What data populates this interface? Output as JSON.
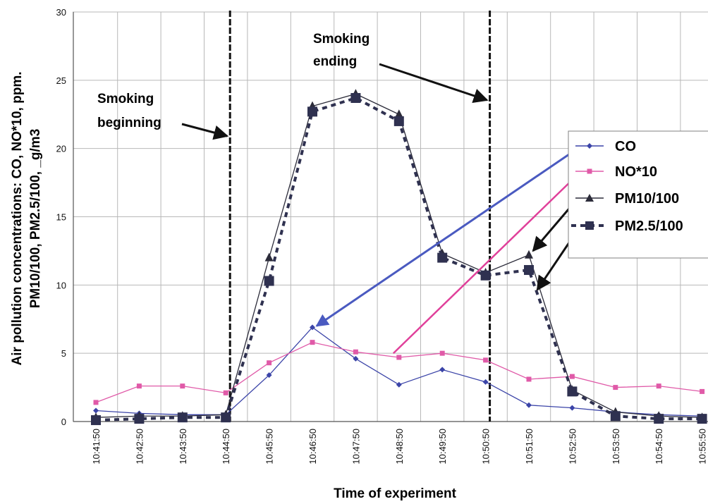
{
  "chart_data": {
    "type": "line",
    "xlabel": "Time of experiment",
    "ylabel": "Air pollution concentrations: CO, NO*10, ppm. PM10/100, PM2.5/100, _g/m3",
    "ylabel_lines": [
      "Air pollution concentrations: CO, NO*10, ppm.",
      "PM10/100, PM2.5/100, _g/m3"
    ],
    "ylim": [
      0,
      30
    ],
    "yticks": [
      0,
      5,
      10,
      15,
      20,
      25,
      30
    ],
    "grid": true,
    "legend_position": "right",
    "categories": [
      "10:41:50",
      "10:42:50",
      "10:43:50",
      "10:44:50",
      "10:45:50",
      "10:46:50",
      "10:47:50",
      "10:48:50",
      "10:49:50",
      "10:50:50",
      "10:51:50",
      "10:52:50",
      "10:53:50",
      "10:54:50",
      "10:55:50"
    ],
    "series": [
      {
        "name": "CO",
        "color": "#3b44a8",
        "marker": "diamond",
        "dash": "none",
        "values": [
          0.8,
          0.6,
          0.5,
          0.5,
          3.4,
          6.9,
          4.6,
          2.7,
          3.8,
          2.9,
          1.2,
          1.0,
          0.7,
          0.5,
          0.4
        ]
      },
      {
        "name": "NO*10",
        "color": "#e05aa8",
        "marker": "square-small",
        "dash": "none",
        "values": [
          1.4,
          2.6,
          2.6,
          2.1,
          4.3,
          5.8,
          5.1,
          4.7,
          5.0,
          4.5,
          3.1,
          3.3,
          2.5,
          2.6,
          2.2
        ]
      },
      {
        "name": "PM10/100",
        "color": "#2c2c3a",
        "marker": "triangle",
        "dash": "none",
        "values": [
          0.3,
          0.4,
          0.4,
          0.5,
          12.0,
          23.1,
          24.0,
          22.5,
          12.3,
          10.9,
          12.2,
          2.3,
          0.7,
          0.4,
          0.3
        ]
      },
      {
        "name": "PM2.5/100",
        "color": "#2f3150",
        "marker": "square",
        "dash": "dashed",
        "values": [
          0.1,
          0.2,
          0.3,
          0.3,
          10.3,
          22.7,
          23.7,
          22.0,
          12.0,
          10.7,
          11.1,
          2.2,
          0.4,
          0.2,
          0.2
        ]
      }
    ],
    "annotations": [
      {
        "text_lines": [
          "Smoking",
          "beginning"
        ],
        "at_category": "10:44:50"
      },
      {
        "text_lines": [
          "Smoking",
          "ending"
        ],
        "at_category": "10:50:50"
      }
    ],
    "event_lines_at": [
      "10:44:50",
      "10:50:50"
    ]
  }
}
